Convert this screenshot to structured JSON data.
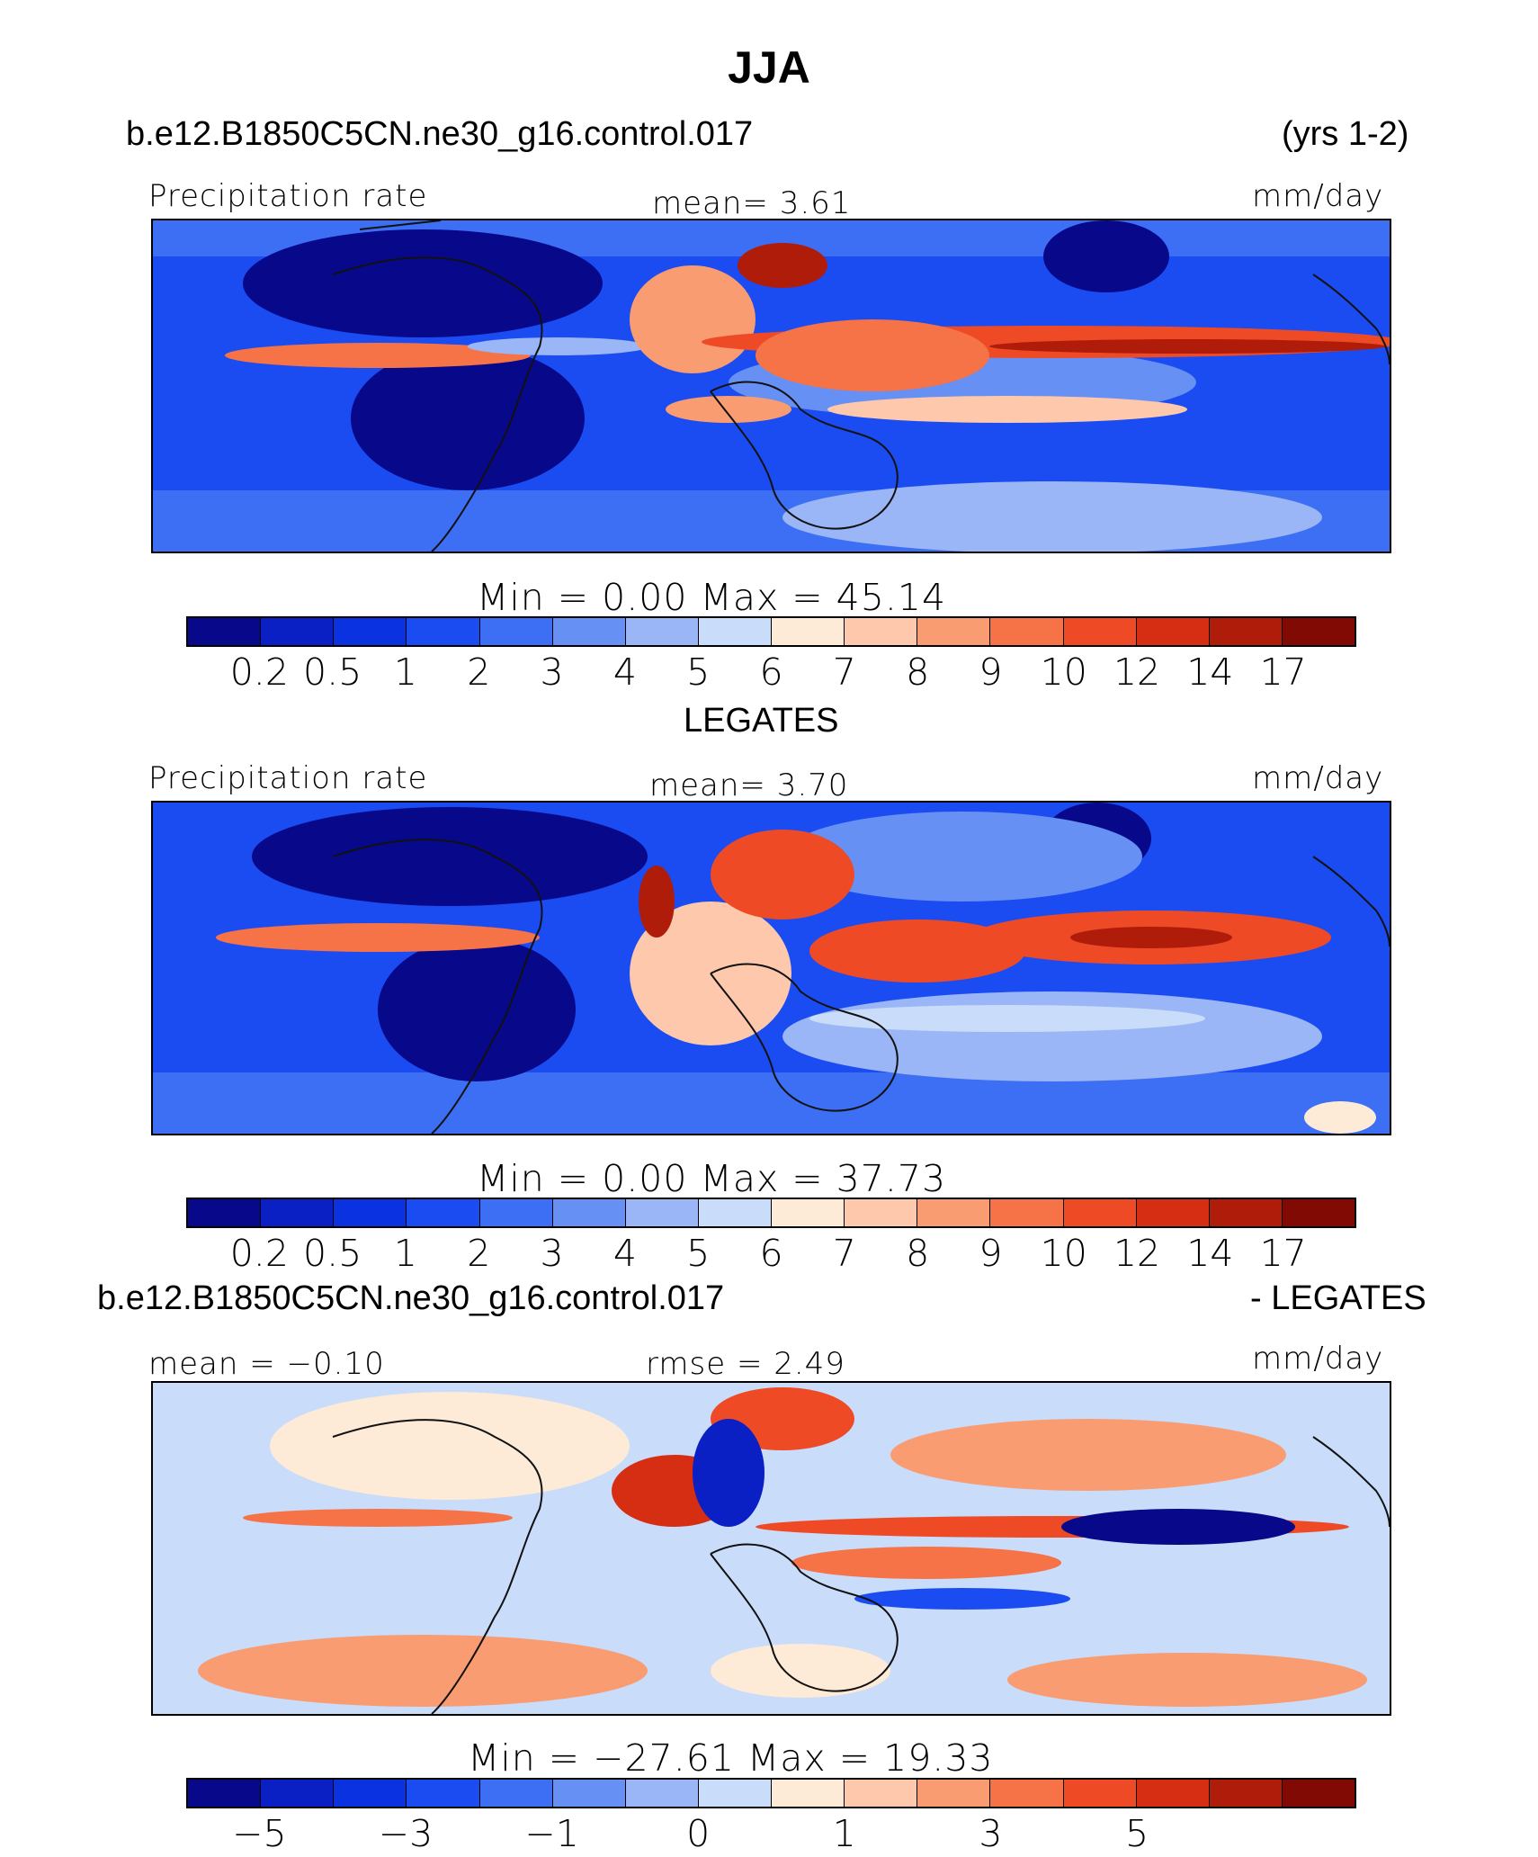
{
  "title": "JJA",
  "colors": [
    "#08088a",
    "#0a1fc4",
    "#0b32e0",
    "#1a4cf2",
    "#3d6ff4",
    "#6690f4",
    "#9ab6f7",
    "#c9dcfa",
    "#fdebd8",
    "#fdc8ac",
    "#f99c72",
    "#f57347",
    "#ee4a26",
    "#d52e12",
    "#b01c0a",
    "#820a05"
  ],
  "panels": [
    {
      "header_left": "b.e12.B1850C5CN.ne30_g16.control.017",
      "header_right": "(yrs 1-2)",
      "left_label": "Precipitation rate",
      "center_label": "mean=    3.61",
      "units": "mm/day",
      "min_max": "Min  =     0.00  Max  =    45.14",
      "ticks": [
        "0.2",
        "0.5",
        "1",
        "2",
        "3",
        "4",
        "5",
        "6",
        "7",
        "8",
        "9",
        "10",
        "12",
        "14",
        "17"
      ]
    },
    {
      "header_left": "LEGATES",
      "header_right": "",
      "left_label": "Precipitation rate",
      "center_label": "mean=    3.70",
      "units": "mm/day",
      "min_max": "Min  =     0.00  Max  =    37.73",
      "ticks": [
        "0.2",
        "0.5",
        "1",
        "2",
        "3",
        "4",
        "5",
        "6",
        "7",
        "8",
        "9",
        "10",
        "12",
        "14",
        "17"
      ]
    },
    {
      "header_left": "b.e12.B1850C5CN.ne30_g16.control.017",
      "header_right": "- LEGATES",
      "left_label": "mean  =   −0.10",
      "center_label": "rmse  =     2.49",
      "units": "mm/day",
      "min_max": "Min  =  −27.61  Max  =    19.33",
      "ticks": [
        "−5",
        "",
        "−3",
        "",
        "−1",
        "",
        "0",
        "",
        "1",
        "",
        "3",
        "",
        "5",
        "",
        ""
      ]
    }
  ]
}
